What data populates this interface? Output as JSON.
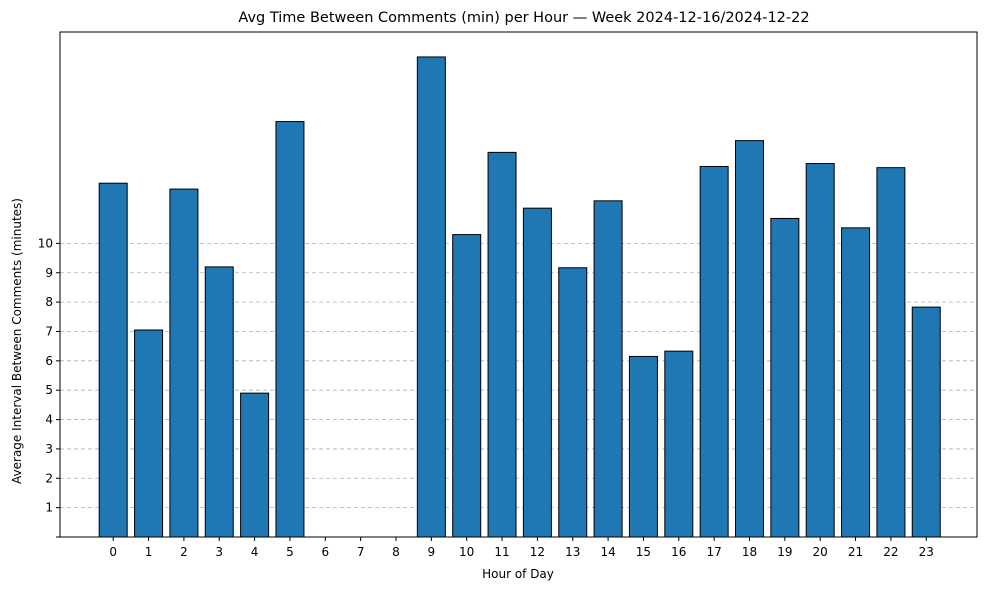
{
  "chart_data": {
    "type": "bar",
    "title": "Avg Time Between Comments (min) per Hour — Week 2024-12-16/2024-12-22",
    "xlabel": "Hour of Day",
    "ylabel": "Average Interval Between Comments (minutes)",
    "categories": [
      "0",
      "1",
      "2",
      "3",
      "4",
      "5",
      "6",
      "7",
      "8",
      "9",
      "10",
      "11",
      "12",
      "13",
      "14",
      "15",
      "16",
      "17",
      "18",
      "19",
      "20",
      "21",
      "22",
      "23"
    ],
    "values": [
      12.05,
      7.05,
      11.85,
      9.2,
      4.9,
      14.15,
      0,
      0,
      0,
      16.35,
      10.3,
      13.1,
      11.2,
      9.17,
      11.45,
      6.15,
      6.33,
      12.62,
      13.5,
      10.85,
      12.72,
      10.53,
      12.58,
      7.83
    ],
    "yticks": [
      "",
      "1",
      "2",
      "3",
      "4",
      "5",
      "6",
      "7",
      "8",
      "9",
      "10"
    ],
    "ylim": [
      0,
      17.2
    ],
    "grid": "y-dashed",
    "bar_color": "#1f77b4",
    "edge_color": "#000000"
  }
}
